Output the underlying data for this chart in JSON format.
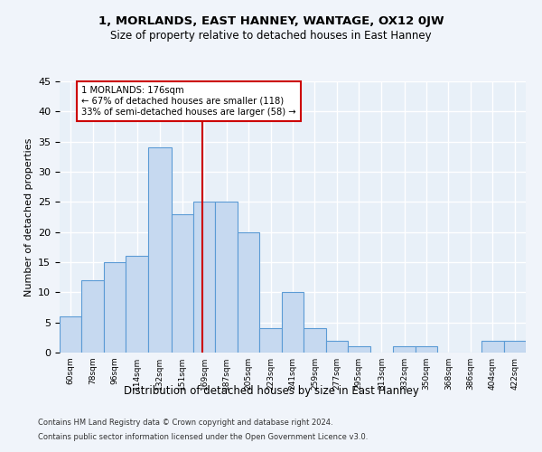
{
  "title1": "1, MORLANDS, EAST HANNEY, WANTAGE, OX12 0JW",
  "title2": "Size of property relative to detached houses in East Hanney",
  "xlabel": "Distribution of detached houses by size in East Hanney",
  "ylabel": "Number of detached properties",
  "bins": [
    60,
    78,
    96,
    114,
    132,
    151,
    169,
    187,
    205,
    223,
    241,
    259,
    277,
    295,
    313,
    332,
    350,
    368,
    386,
    404,
    422,
    440
  ],
  "bin_labels": [
    "60sqm",
    "78sqm",
    "96sqm",
    "114sqm",
    "132sqm",
    "151sqm",
    "169sqm",
    "187sqm",
    "205sqm",
    "223sqm",
    "241sqm",
    "259sqm",
    "277sqm",
    "295sqm",
    "313sqm",
    "332sqm",
    "350sqm",
    "368sqm",
    "386sqm",
    "404sqm",
    "422sqm"
  ],
  "values": [
    6,
    12,
    15,
    16,
    34,
    23,
    25,
    25,
    20,
    4,
    10,
    4,
    2,
    1,
    0,
    1,
    1,
    0,
    0,
    2,
    2
  ],
  "bar_color": "#c6d9f0",
  "bar_edge_color": "#5b9bd5",
  "subject_value": 176,
  "vline_color": "#cc0000",
  "annotation_line1": "1 MORLANDS: 176sqm",
  "annotation_line2": "← 67% of detached houses are smaller (118)",
  "annotation_line3": "33% of semi-detached houses are larger (58) →",
  "annotation_box_color": "#ffffff",
  "annotation_box_edge": "#cc0000",
  "ylim": [
    0,
    45
  ],
  "yticks": [
    0,
    5,
    10,
    15,
    20,
    25,
    30,
    35,
    40,
    45
  ],
  "background_color": "#e8f0f8",
  "grid_color": "#ffffff",
  "fig_background": "#f0f4fa",
  "footer_line1": "Contains HM Land Registry data © Crown copyright and database right 2024.",
  "footer_line2": "Contains public sector information licensed under the Open Government Licence v3.0."
}
